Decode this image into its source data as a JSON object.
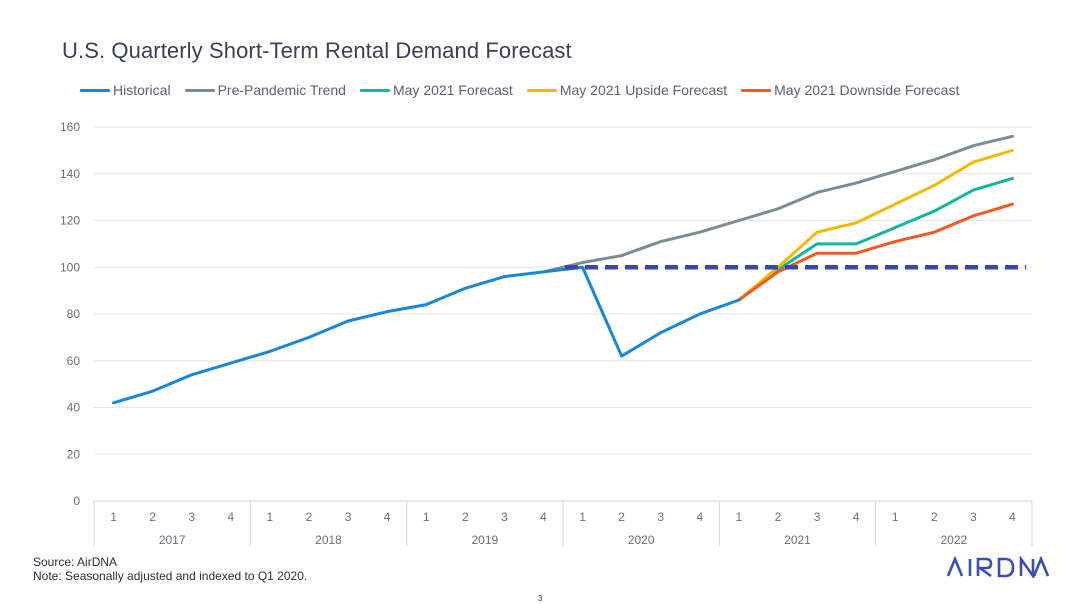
{
  "title": "U.S. Quarterly Short-Term Rental Demand Forecast",
  "footer": {
    "source": "Source: AirDNA",
    "note": "Note: Seasonally adjusted and indexed to Q1 2020."
  },
  "page_number": "3",
  "logo": "AIRDNA",
  "chart_data": {
    "type": "line",
    "title": "U.S. Quarterly Short-Term Rental Demand Forecast",
    "xlabel": "",
    "ylabel": "",
    "ylim": [
      0,
      160
    ],
    "y_ticks": [
      0,
      20,
      40,
      60,
      80,
      100,
      120,
      140,
      160
    ],
    "grid": true,
    "legend_position": "top",
    "categories": [
      "1",
      "2",
      "3",
      "4",
      "1",
      "2",
      "3",
      "4",
      "1",
      "2",
      "3",
      "4",
      "1",
      "2",
      "3",
      "4",
      "1",
      "2",
      "3",
      "4",
      "1",
      "2",
      "3",
      "4"
    ],
    "year_groups": [
      "2017",
      "2018",
      "2019",
      "2020",
      "2021",
      "2022"
    ],
    "reference_line": {
      "value": 100,
      "start_index": 12,
      "end_index": 23,
      "color": "#3a46a8",
      "style": "dashed"
    },
    "series": [
      {
        "name": "Historical",
        "color": "#1a86d8",
        "values": [
          42,
          47,
          54,
          59,
          64,
          70,
          77,
          81,
          84,
          91,
          96,
          98,
          100,
          62,
          72,
          80,
          86,
          null,
          null,
          null,
          null,
          null,
          null,
          null
        ]
      },
      {
        "name": "Pre-Pandemic Trend",
        "color": "#7b8c97",
        "values": [
          null,
          null,
          null,
          null,
          null,
          null,
          null,
          null,
          null,
          null,
          null,
          98,
          102,
          105,
          111,
          115,
          120,
          125,
          132,
          136,
          141,
          146,
          152,
          156
        ]
      },
      {
        "name": "May 2021 Forecast",
        "color": "#12b7a0",
        "values": [
          null,
          null,
          null,
          null,
          null,
          null,
          null,
          null,
          null,
          null,
          null,
          null,
          null,
          null,
          null,
          null,
          86,
          99,
          110,
          110,
          117,
          124,
          133,
          138
        ]
      },
      {
        "name": "May 2021 Upside Forecast",
        "color": "#f5b800",
        "values": [
          null,
          null,
          null,
          null,
          null,
          null,
          null,
          null,
          null,
          null,
          null,
          null,
          null,
          null,
          null,
          null,
          86,
          100,
          115,
          119,
          127,
          135,
          145,
          150
        ]
      },
      {
        "name": "May 2021 Downside Forecast",
        "color": "#f25a24",
        "values": [
          null,
          null,
          null,
          null,
          null,
          null,
          null,
          null,
          null,
          null,
          null,
          null,
          null,
          null,
          null,
          null,
          86,
          98,
          106,
          106,
          111,
          115,
          122,
          127
        ]
      }
    ]
  }
}
